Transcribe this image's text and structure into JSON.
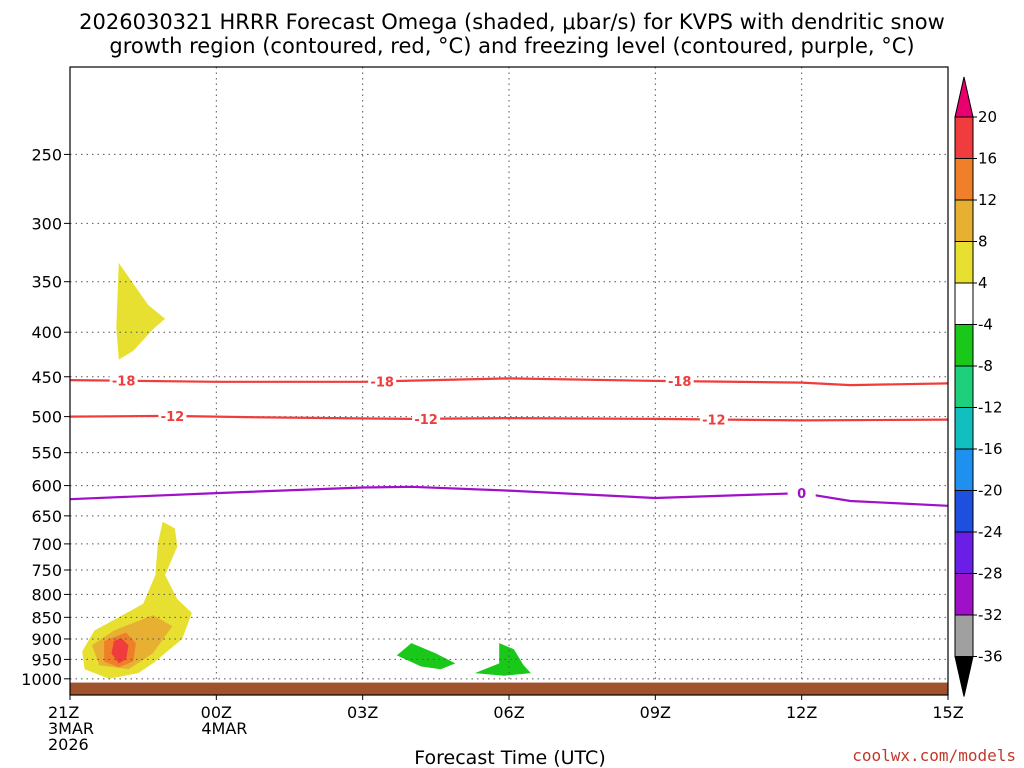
{
  "chart_data": {
    "type": "heatmap",
    "title": "2026030321 HRRR Forecast Omega (shaded, μbar/s) for KVPS with dendritic snow growth region (contoured, red, °C) and freezing level (contoured, purple, °C)",
    "title_lines": [
      "2026030321 HRRR Forecast Omega (shaded, μbar/s) for KVPS with dendritic snow",
      "growth region (contoured, red, °C) and freezing level (contoured, purple, °C)"
    ],
    "xlabel": "Forecast Time (UTC)",
    "ylabel": "",
    "x_range_hours": [
      0,
      18
    ],
    "y_scale": "log-pressure",
    "y_range_hPa": [
      1030,
      200
    ],
    "grid": true,
    "x_ticks": [
      {
        "hour": 0,
        "lines": [
          "21Z",
          "3MAR",
          "2026"
        ]
      },
      {
        "hour": 3,
        "lines": [
          "00Z",
          "4MAR"
        ]
      },
      {
        "hour": 6,
        "lines": [
          "03Z"
        ]
      },
      {
        "hour": 9,
        "lines": [
          "06Z"
        ]
      },
      {
        "hour": 12,
        "lines": [
          "09Z"
        ]
      },
      {
        "hour": 15,
        "lines": [
          "12Z"
        ]
      },
      {
        "hour": 18,
        "lines": [
          "15Z"
        ]
      }
    ],
    "y_ticks": [
      250,
      300,
      350,
      400,
      450,
      500,
      550,
      600,
      650,
      700,
      750,
      800,
      850,
      900,
      950,
      1000
    ],
    "colorbar": {
      "levels": [
        20,
        16,
        12,
        8,
        4,
        -4,
        -8,
        -12,
        -16,
        -20,
        -24,
        -28,
        -32,
        -36
      ],
      "colors": [
        "#e8006e",
        "#f03c3c",
        "#f07f2a",
        "#e8b033",
        "#e8e030",
        "#ffffff",
        "#19c819",
        "#1ecf7b",
        "#11bfbf",
        "#1e90f0",
        "#1e50e0",
        "#6a1ee6",
        "#a010c8",
        "#a0a0a0",
        "#000000"
      ]
    },
    "contours": {
      "dendritic": [
        {
          "label": "-18",
          "color": "#f03c3c",
          "points": [
            [
              0,
              454
            ],
            [
              3,
              456
            ],
            [
              6,
              456
            ],
            [
              9,
              452
            ],
            [
              12,
              455
            ],
            [
              15,
              457
            ],
            [
              16,
              460
            ],
            [
              18,
              458
            ]
          ],
          "label_hours": [
            1.1,
            6.4,
            12.5
          ]
        },
        {
          "label": "-12",
          "color": "#f03c3c",
          "points": [
            [
              0,
              500
            ],
            [
              2,
              499
            ],
            [
              4,
              501
            ],
            [
              7,
              503
            ],
            [
              9,
              502
            ],
            [
              12,
              503
            ],
            [
              15,
              505
            ],
            [
              18,
              504
            ]
          ],
          "label_hours": [
            2.1,
            7.3,
            13.2
          ]
        }
      ],
      "freezing_level": [
        {
          "label": "0",
          "color": "#a010c8",
          "points": [
            [
              0,
              622
            ],
            [
              3,
              612
            ],
            [
              6,
              603
            ],
            [
              7,
              602
            ],
            [
              9,
              608
            ],
            [
              12,
              620
            ],
            [
              15,
              612
            ],
            [
              16,
              625
            ],
            [
              18,
              633
            ]
          ],
          "label_hours": [
            15
          ]
        }
      ]
    },
    "shaded_regions": [
      {
        "value_band": "4 to 8",
        "color": "#e8e030",
        "points": [
          [
            1,
            333
          ],
          [
            1.6,
            372
          ],
          [
            1.95,
            386
          ],
          [
            1.7,
            397
          ],
          [
            1.3,
            420
          ],
          [
            1.0,
            430
          ],
          [
            0.95,
            395
          ]
        ]
      },
      {
        "value_band": "4 to 8",
        "color": "#e8e030",
        "points": [
          [
            1.9,
            660
          ],
          [
            2.15,
            672
          ],
          [
            2.2,
            705
          ],
          [
            1.95,
            760
          ],
          [
            2.2,
            810
          ],
          [
            2.5,
            840
          ],
          [
            2.3,
            900
          ],
          [
            1.7,
            960
          ],
          [
            1.4,
            985
          ],
          [
            0.8,
            1000
          ],
          [
            0.3,
            975
          ],
          [
            0.25,
            930
          ],
          [
            0.5,
            880
          ],
          [
            1.0,
            850
          ],
          [
            1.5,
            820
          ],
          [
            1.75,
            760
          ],
          [
            1.8,
            700
          ]
        ]
      },
      {
        "value_band": "8 to 12",
        "color": "#e8b033",
        "points": [
          [
            1.7,
            845
          ],
          [
            2.1,
            870
          ],
          [
            1.7,
            935
          ],
          [
            1.2,
            975
          ],
          [
            0.6,
            965
          ],
          [
            0.45,
            915
          ],
          [
            0.9,
            880
          ]
        ]
      },
      {
        "value_band": "12 to 16",
        "color": "#f07f2a",
        "points": [
          [
            1.15,
            885
          ],
          [
            1.35,
            910
          ],
          [
            1.3,
            955
          ],
          [
            1.0,
            970
          ],
          [
            0.7,
            955
          ],
          [
            0.7,
            905
          ]
        ]
      },
      {
        "value_band": "16 to 20",
        "color": "#f03c3c",
        "points": [
          [
            1.05,
            898
          ],
          [
            1.2,
            915
          ],
          [
            1.15,
            950
          ],
          [
            1.0,
            960
          ],
          [
            0.85,
            935
          ],
          [
            0.9,
            905
          ]
        ]
      },
      {
        "value_band": "-4 to -8",
        "color": "#19c819",
        "points": [
          [
            7.0,
            910
          ],
          [
            7.5,
            935
          ],
          [
            7.9,
            960
          ],
          [
            7.6,
            975
          ],
          [
            7.2,
            968
          ],
          [
            6.7,
            940
          ]
        ]
      },
      {
        "value_band": "-4 to -8",
        "color": "#19c819",
        "points": [
          [
            8.8,
            910
          ],
          [
            9.1,
            925
          ],
          [
            9.3,
            965
          ],
          [
            9.45,
            985
          ],
          [
            8.9,
            992
          ],
          [
            8.3,
            985
          ],
          [
            8.8,
            960
          ]
        ]
      }
    ],
    "ground_band_hPa": [
      1010,
      1030
    ]
  },
  "credit": "coolwx.com/models"
}
